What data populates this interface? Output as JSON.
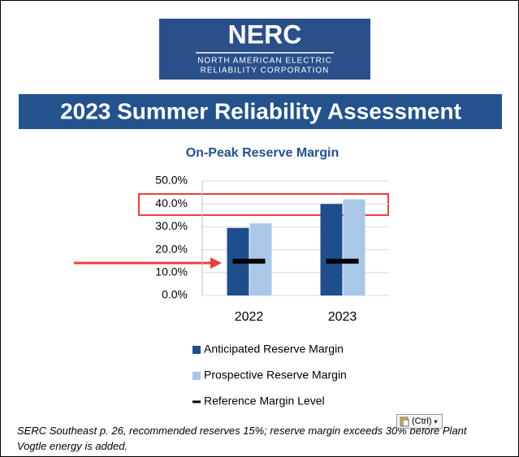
{
  "logo": {
    "name": "NERC",
    "line1": "NORTH AMERICAN ELECTRIC",
    "line2": "RELIABILITY CORPORATION"
  },
  "banner": "2023 Summer Reliability Assessment",
  "chart_data": {
    "type": "bar",
    "title": "On-Peak Reserve Margin",
    "categories": [
      "2022",
      "2023"
    ],
    "series": [
      {
        "name": "Anticipated Reserve Margin",
        "color": "#1f4e8c",
        "values": [
          29.5,
          40
        ]
      },
      {
        "name": "Prospective Reserve Margin",
        "color": "#a9c8e8",
        "values": [
          31.5,
          42
        ]
      },
      {
        "name": "Reference Margin Level",
        "color": "#000000",
        "marker": "dash",
        "values": [
          15,
          15
        ]
      }
    ],
    "ylim": [
      0,
      50
    ],
    "yticks": [
      {
        "value": 0,
        "label": "0.0%"
      },
      {
        "value": 10,
        "label": "10.0%"
      },
      {
        "value": 20,
        "label": "20.0%"
      },
      {
        "value": 30,
        "label": "30.0%"
      },
      {
        "value": 40,
        "label": "40.0%"
      },
      {
        "value": 50,
        "label": "50.0%"
      }
    ],
    "grid": true,
    "legend": "bottom"
  },
  "caption": "SERC Southeast p. 26, recommended reserves 15%; reserve margin exceeds 30% before Plant Vogtle energy is added.",
  "paste_options": "(Ctrl)"
}
